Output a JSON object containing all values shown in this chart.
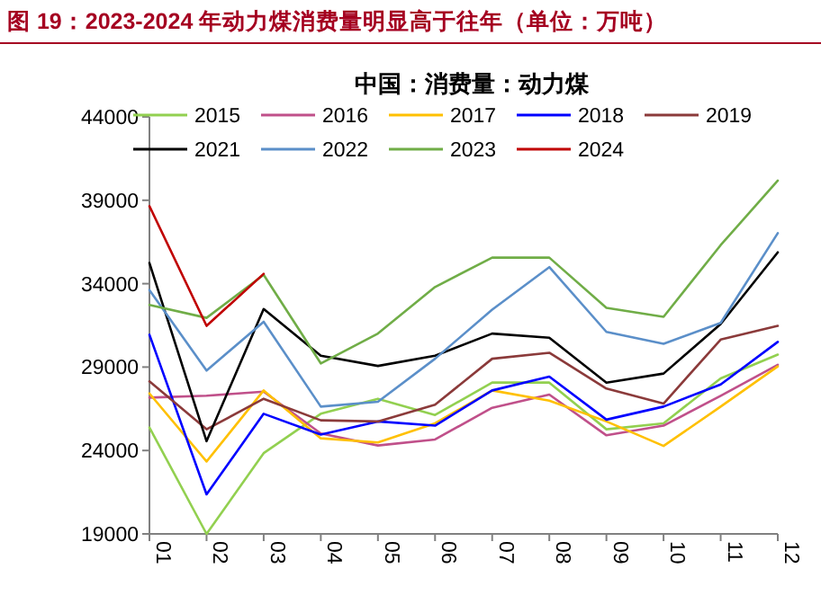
{
  "chart_data": {
    "type": "line",
    "title": "图 19：2023-2024 年动力煤消费量明显高于往年（单位：万吨）",
    "subtitle": "中国：消费量：动力煤",
    "categories": [
      "01",
      "02",
      "03",
      "04",
      "05",
      "06",
      "07",
      "08",
      "09",
      "10",
      "11",
      "12"
    ],
    "series": [
      {
        "name": "2015",
        "color": "#92d050",
        "values": [
          25380,
          19000,
          23840,
          26200,
          27100,
          26130,
          28070,
          28070,
          25270,
          25630,
          28320,
          29750
        ]
      },
      {
        "name": "2016",
        "color": "#c0508a",
        "values": [
          27170,
          27280,
          27530,
          25020,
          24300,
          24660,
          26560,
          27350,
          24910,
          25490,
          27280,
          29140
        ]
      },
      {
        "name": "2017",
        "color": "#ffc000",
        "values": [
          27420,
          23340,
          27600,
          24730,
          24480,
          25630,
          27600,
          26990,
          25740,
          24270,
          26630,
          29040
        ]
      },
      {
        "name": "2018",
        "color": "#0000ff",
        "values": [
          30940,
          21370,
          26200,
          24950,
          25740,
          25490,
          27600,
          28430,
          25850,
          26630,
          27960,
          30510
        ]
      },
      {
        "name": "2019",
        "color": "#8b3a3a",
        "values": [
          28140,
          25270,
          27100,
          25810,
          25740,
          26740,
          29500,
          29860,
          27710,
          26810,
          30650,
          31470
        ]
      },
      {
        "name": "2021",
        "color": "#000000",
        "values": [
          35240,
          24560,
          32480,
          29680,
          29070,
          29680,
          31010,
          30760,
          28070,
          28610,
          31580,
          35880
        ]
      },
      {
        "name": "2022",
        "color": "#5b8fc9",
        "values": [
          33620,
          28790,
          31720,
          26630,
          26920,
          29500,
          32440,
          34990,
          31110,
          30400,
          31650,
          37030
        ]
      },
      {
        "name": "2023",
        "color": "#70ad47",
        "values": [
          32730,
          31950,
          34530,
          29220,
          31010,
          33800,
          35560,
          35560,
          32550,
          32010,
          36310,
          40180
        ]
      },
      {
        "name": "2024",
        "color": "#c00000",
        "values": [
          38650,
          31470,
          34590,
          null,
          null,
          null,
          null,
          null,
          null,
          null,
          null,
          null
        ]
      }
    ],
    "ylim": [
      19000,
      44000
    ],
    "yticks": [
      19000,
      24000,
      29000,
      34000,
      39000,
      44000
    ],
    "legend": "top",
    "grid": false
  }
}
